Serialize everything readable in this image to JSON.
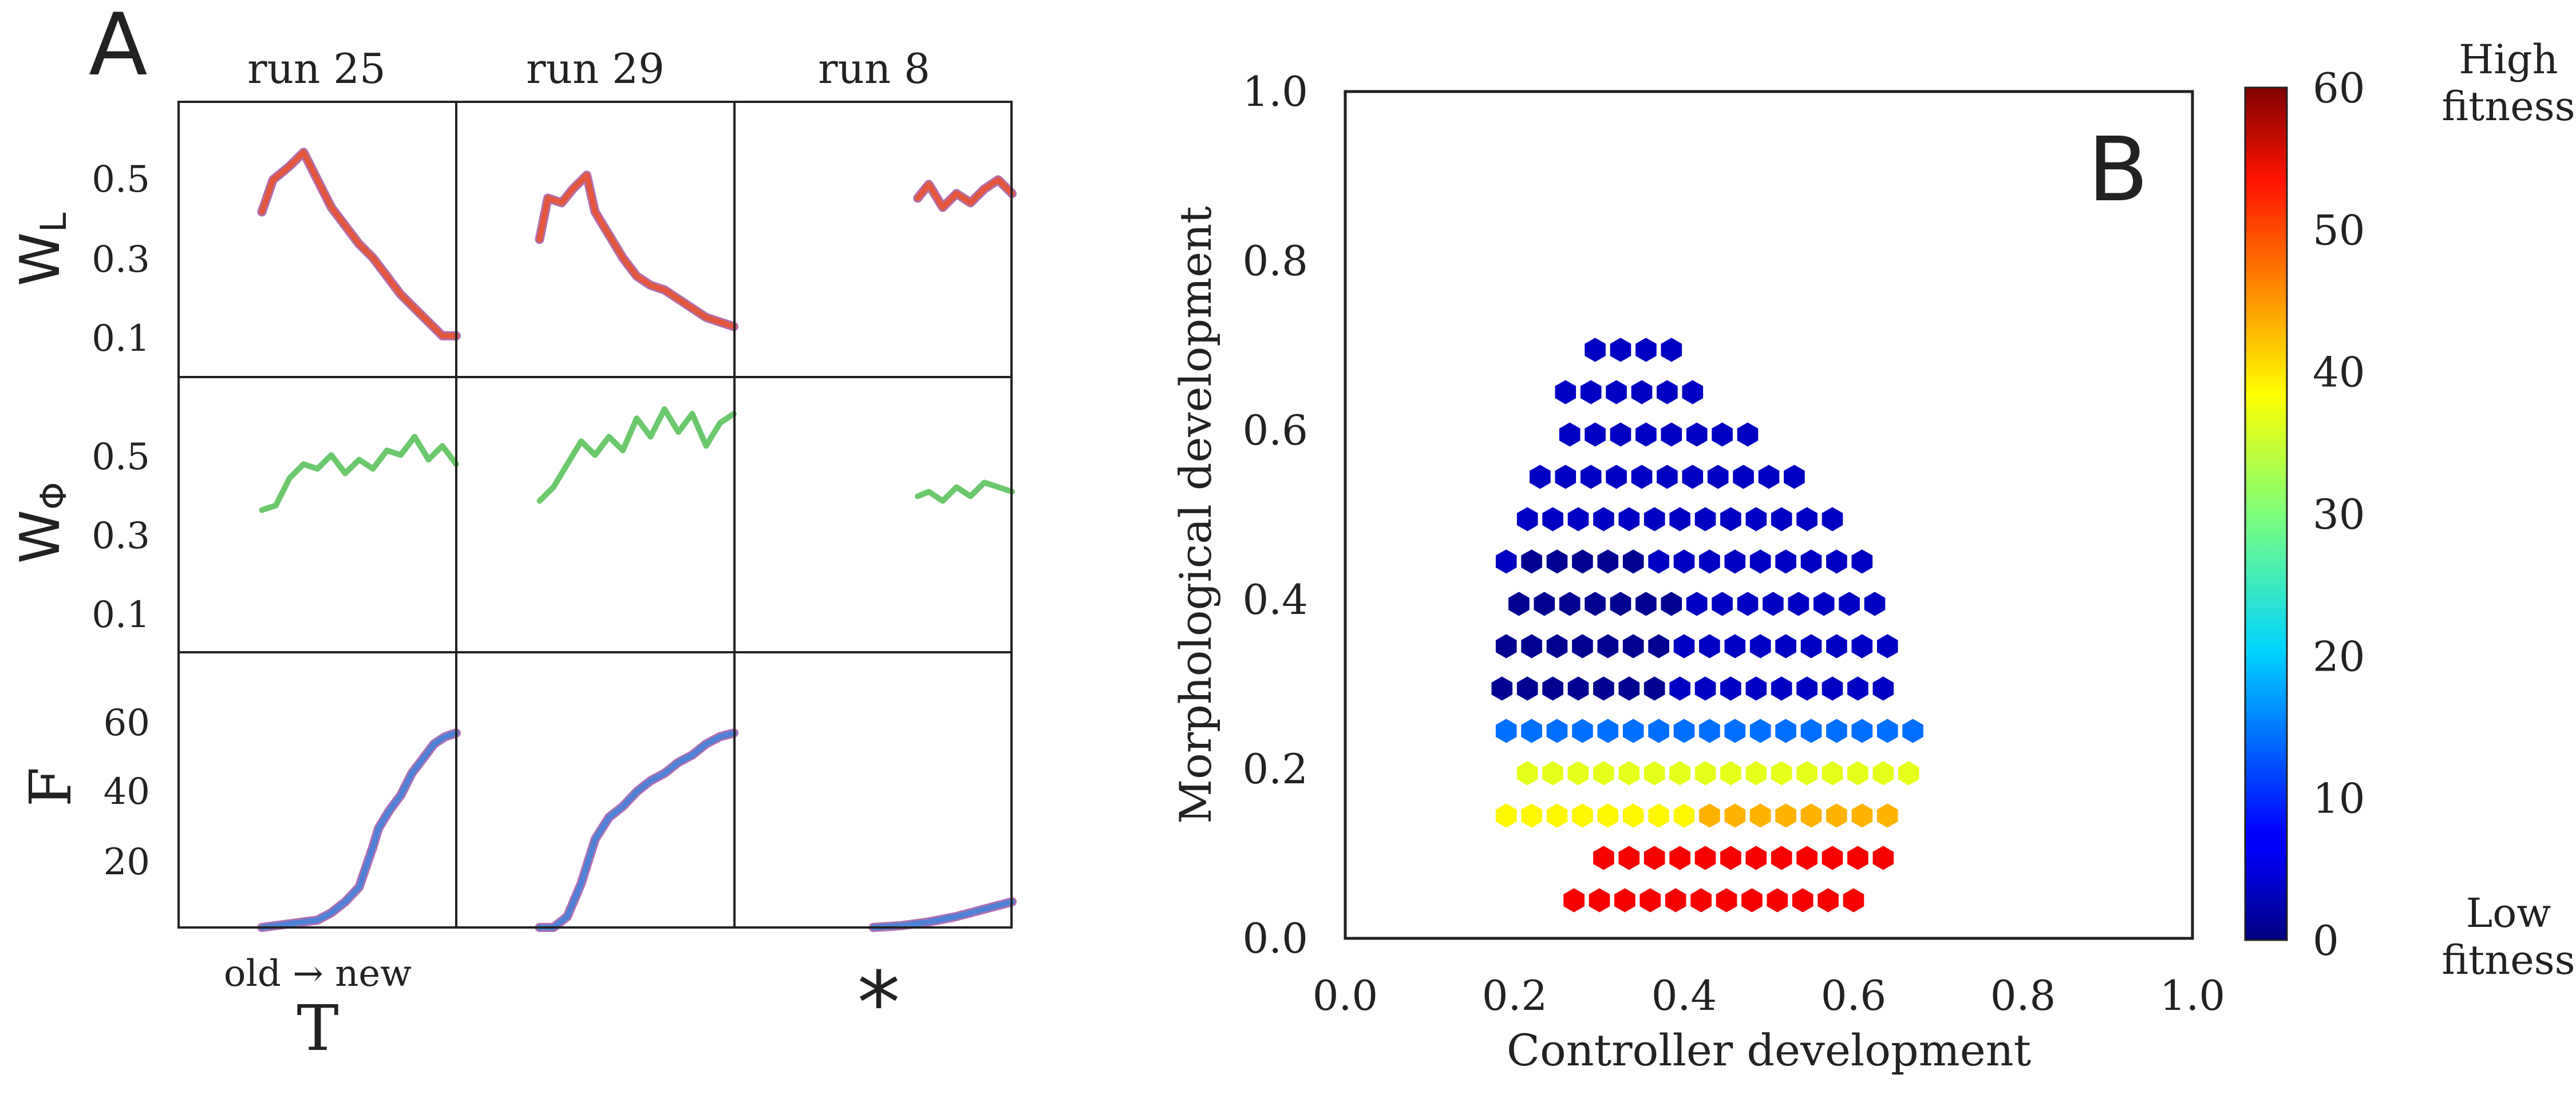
{
  "panel_a": {
    "label": "A",
    "columns": [
      "run 25",
      "run 29",
      "run 8"
    ],
    "row_labels": [
      {
        "base": "W",
        "sub": "L"
      },
      {
        "base": "W",
        "sub": "Φ"
      },
      {
        "base": "F",
        "sub": ""
      }
    ],
    "row_ticks": [
      [
        "0.5",
        "0.3",
        "0.1"
      ],
      [
        "0.5",
        "0.3",
        "0.1"
      ],
      [
        "60",
        "40",
        "20"
      ]
    ],
    "x_caption": "old → new",
    "x_label": "T",
    "star": "*",
    "colors": {
      "wl": "#e3573f",
      "wl_edge": "#b06fb0",
      "wphi": "#6cc86c",
      "f": "#4f82d6",
      "f_edge": "#b06fb0"
    }
  },
  "chart_data": [
    {
      "type": "line",
      "panel": "A",
      "x_scale": "relative time (0 = old, 1 = new)",
      "rows": [
        {
          "name": "W_L",
          "ylim": [
            0,
            0.6
          ],
          "runs": [
            {
              "run": "run 25",
              "x": [
                0.3,
                0.34,
                0.4,
                0.45,
                0.5,
                0.55,
                0.6,
                0.65,
                0.7,
                0.75,
                0.8,
                0.85,
                0.9,
                0.95,
                1.0
              ],
              "y": [
                0.36,
                0.43,
                0.46,
                0.49,
                0.43,
                0.37,
                0.33,
                0.29,
                0.26,
                0.22,
                0.18,
                0.15,
                0.12,
                0.09,
                0.09
              ]
            },
            {
              "run": "run 29",
              "x": [
                0.3,
                0.33,
                0.38,
                0.42,
                0.47,
                0.5,
                0.55,
                0.6,
                0.65,
                0.7,
                0.75,
                0.8,
                0.85,
                0.9,
                0.95,
                1.0
              ],
              "y": [
                0.3,
                0.39,
                0.38,
                0.41,
                0.44,
                0.36,
                0.31,
                0.26,
                0.22,
                0.2,
                0.19,
                0.17,
                0.15,
                0.13,
                0.12,
                0.11
              ]
            },
            {
              "run": "run 8",
              "x": [
                0.66,
                0.7,
                0.75,
                0.8,
                0.85,
                0.9,
                0.95,
                1.0
              ],
              "y": [
                0.39,
                0.42,
                0.37,
                0.4,
                0.38,
                0.41,
                0.43,
                0.4
              ]
            }
          ]
        },
        {
          "name": "W_Φ",
          "ylim": [
            0,
            0.6
          ],
          "runs": [
            {
              "run": "run 25",
              "x": [
                0.3,
                0.35,
                0.4,
                0.45,
                0.5,
                0.55,
                0.6,
                0.65,
                0.7,
                0.75,
                0.8,
                0.85,
                0.9,
                0.95,
                1.0
              ],
              "y": [
                0.31,
                0.32,
                0.38,
                0.41,
                0.4,
                0.43,
                0.39,
                0.42,
                0.4,
                0.44,
                0.43,
                0.47,
                0.42,
                0.45,
                0.41
              ]
            },
            {
              "run": "run 29",
              "x": [
                0.3,
                0.35,
                0.4,
                0.45,
                0.5,
                0.55,
                0.6,
                0.65,
                0.7,
                0.75,
                0.8,
                0.85,
                0.9,
                0.95,
                1.0
              ],
              "y": [
                0.33,
                0.36,
                0.41,
                0.46,
                0.43,
                0.47,
                0.44,
                0.51,
                0.47,
                0.53,
                0.48,
                0.52,
                0.45,
                0.5,
                0.52
              ]
            },
            {
              "run": "run 8",
              "x": [
                0.66,
                0.7,
                0.75,
                0.8,
                0.85,
                0.9,
                0.95,
                1.0
              ],
              "y": [
                0.34,
                0.35,
                0.33,
                0.36,
                0.34,
                0.37,
                0.36,
                0.35
              ]
            }
          ]
        },
        {
          "name": "F",
          "ylim": [
            0,
            75
          ],
          "runs": [
            {
              "run": "run 25",
              "x": [
                0.3,
                0.4,
                0.5,
                0.55,
                0.6,
                0.65,
                0.7,
                0.72,
                0.76,
                0.8,
                0.84,
                0.88,
                0.92,
                0.96,
                1.0
              ],
              "y": [
                0,
                1,
                2,
                4,
                7,
                11,
                22,
                27,
                32,
                36,
                42,
                46,
                50,
                52,
                53
              ]
            },
            {
              "run": "run 29",
              "x": [
                0.3,
                0.35,
                0.4,
                0.45,
                0.5,
                0.55,
                0.6,
                0.65,
                0.7,
                0.75,
                0.8,
                0.85,
                0.9,
                0.95,
                1.0
              ],
              "y": [
                0,
                0,
                3,
                12,
                24,
                30,
                33,
                37,
                40,
                42,
                45,
                47,
                50,
                52,
                53
              ]
            },
            {
              "run": "run 8",
              "x": [
                0.5,
                0.6,
                0.7,
                0.8,
                0.9,
                1.0
              ],
              "y": [
                0,
                0.5,
                1.5,
                3,
                5,
                7
              ]
            }
          ]
        }
      ]
    },
    {
      "type": "heatmap",
      "panel": "B",
      "label": "B",
      "xlabel": "Controller development",
      "ylabel": "Morphological development",
      "xlim": [
        0,
        1
      ],
      "ylim": [
        0,
        1
      ],
      "x_ticks": [
        "0.0",
        "0.2",
        "0.4",
        "0.6",
        "0.8",
        "1.0"
      ],
      "y_ticks": [
        "0.0",
        "0.2",
        "0.4",
        "0.6",
        "0.8",
        "1.0"
      ],
      "colorbar": {
        "range": [
          0,
          60
        ],
        "ticks": [
          "60",
          "50",
          "40",
          "30",
          "20",
          "10",
          "0"
        ],
        "high_label": [
          "High",
          "fitness"
        ],
        "low_label": [
          "Low",
          "fitness"
        ]
      },
      "bins": {
        "y_levels": [
          0.045,
          0.095,
          0.145,
          0.195,
          0.245,
          0.295,
          0.345,
          0.395,
          0.445,
          0.495,
          0.545,
          0.595,
          0.645,
          0.695
        ],
        "x_ranges": [
          [
            0.27,
            0.6
          ],
          [
            0.29,
            0.64
          ],
          [
            0.19,
            0.65
          ],
          [
            0.2,
            0.67
          ],
          [
            0.19,
            0.67
          ],
          [
            0.17,
            0.64
          ],
          [
            0.19,
            0.64
          ],
          [
            0.19,
            0.63
          ],
          [
            0.19,
            0.63
          ],
          [
            0.2,
            0.6
          ],
          [
            0.23,
            0.55
          ],
          [
            0.25,
            0.5
          ],
          [
            0.26,
            0.42
          ],
          [
            0.28,
            0.4
          ]
        ],
        "fitness_rules": [
          {
            "y_max": 0.12,
            "fitness": 53
          },
          {
            "y_max": 0.17,
            "fitness_left": 38,
            "fitness_right": 42
          },
          {
            "y_max": 0.22,
            "fitness": 36
          },
          {
            "y_max": 0.27,
            "fitness": 14
          },
          {
            "else": true,
            "fitness": 4,
            "dark_blob": {
              "cx": 0.28,
              "cy": 0.35,
              "rx": 0.12,
              "ry": 0.12,
              "fitness": 1
            }
          }
        ]
      }
    }
  ]
}
